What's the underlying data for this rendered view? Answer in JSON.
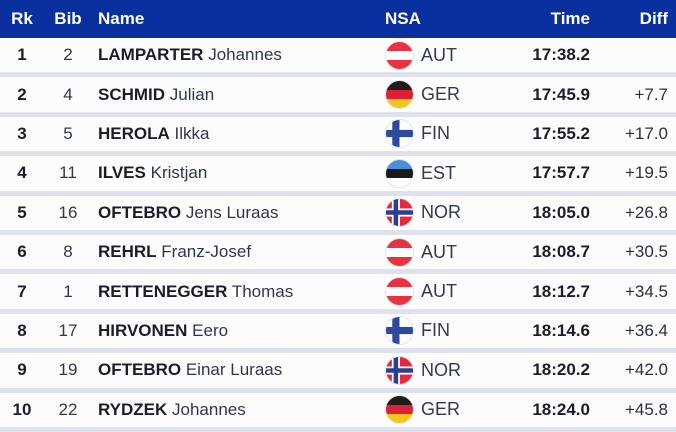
{
  "colors": {
    "header_bg": "#0a2f9e",
    "header_text": "#ffffff",
    "row_bg": "#fcfcfd",
    "separator": "#dfe2ec",
    "text_primary": "#1b1e28",
    "text_secondary": "#31374a"
  },
  "table": {
    "columns": [
      {
        "key": "rk",
        "label": "Rk"
      },
      {
        "key": "bib",
        "label": "Bib"
      },
      {
        "key": "name",
        "label": "Name"
      },
      {
        "key": "nsa",
        "label": "NSA"
      },
      {
        "key": "time",
        "label": "Time"
      },
      {
        "key": "diff",
        "label": "Diff"
      }
    ],
    "rows": [
      {
        "rank": "1",
        "bib": "2",
        "surname": "LAMPARTER",
        "given": "Johannes",
        "nsa": "AUT",
        "time": "17:38.2",
        "diff": ""
      },
      {
        "rank": "2",
        "bib": "4",
        "surname": "SCHMID",
        "given": "Julian",
        "nsa": "GER",
        "time": "17:45.9",
        "diff": "+7.7"
      },
      {
        "rank": "3",
        "bib": "5",
        "surname": "HEROLA",
        "given": "Ilkka",
        "nsa": "FIN",
        "time": "17:55.2",
        "diff": "+17.0"
      },
      {
        "rank": "4",
        "bib": "11",
        "surname": "ILVES",
        "given": "Kristjan",
        "nsa": "EST",
        "time": "17:57.7",
        "diff": "+19.5"
      },
      {
        "rank": "5",
        "bib": "16",
        "surname": "OFTEBRO",
        "given": "Jens Luraas",
        "nsa": "NOR",
        "time": "18:05.0",
        "diff": "+26.8"
      },
      {
        "rank": "6",
        "bib": "8",
        "surname": "REHRL",
        "given": "Franz-Josef",
        "nsa": "AUT",
        "time": "18:08.7",
        "diff": "+30.5"
      },
      {
        "rank": "7",
        "bib": "1",
        "surname": "RETTENEGGER",
        "given": "Thomas",
        "nsa": "AUT",
        "time": "18:12.7",
        "diff": "+34.5"
      },
      {
        "rank": "8",
        "bib": "17",
        "surname": "HIRVONEN",
        "given": "Eero",
        "nsa": "FIN",
        "time": "18:14.6",
        "diff": "+36.4"
      },
      {
        "rank": "9",
        "bib": "19",
        "surname": "OFTEBRO",
        "given": "Einar Luraas",
        "nsa": "NOR",
        "time": "18:20.2",
        "diff": "+42.0"
      },
      {
        "rank": "10",
        "bib": "22",
        "surname": "RYDZEK",
        "given": "Johannes",
        "nsa": "GER",
        "time": "18:24.0",
        "diff": "+45.8"
      }
    ]
  },
  "flags": {
    "AUT": {
      "type": "hstripes",
      "colors": [
        "#e8323f",
        "#ffffff",
        "#e8323f"
      ]
    },
    "GER": {
      "type": "hstripes",
      "colors": [
        "#1d1d1b",
        "#dd2033",
        "#f2c71d"
      ]
    },
    "FIN": {
      "type": "nordic",
      "bg": "#ffffff",
      "cross": "#2c4a9e"
    },
    "EST": {
      "type": "hstripes",
      "colors": [
        "#4a90d9",
        "#1a1a1a",
        "#ffffff"
      ]
    },
    "NOR": {
      "type": "nordic_double",
      "bg": "#e8273c",
      "cross_outer": "#ffffff",
      "cross_inner": "#26418f"
    }
  }
}
